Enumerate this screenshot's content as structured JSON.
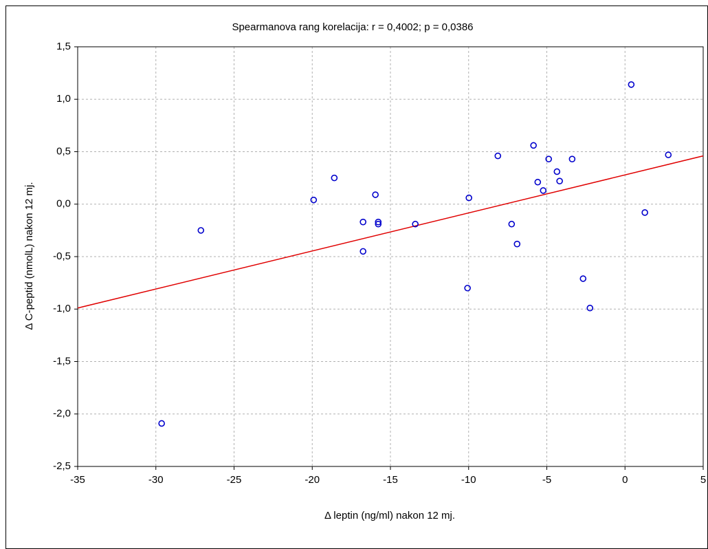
{
  "chart_data": {
    "type": "scatter",
    "title": "Spearmanova rang korelacija: r = 0,4002; p = 0,0386",
    "xlabel": "Δ leptin (ng/ml) nakon 12 mj.",
    "ylabel": "Δ C-peptid  (nmolL) nakon 12 mj.",
    "x": [
      -29.63,
      -27.12,
      -19.91,
      -18.59,
      -16.75,
      -16.75,
      -15.96,
      -15.78,
      -15.78,
      -13.41,
      -10.07,
      -9.98,
      -8.13,
      -7.25,
      -6.9,
      -5.85,
      -5.58,
      -5.23,
      -4.88,
      -4.35,
      -4.18,
      -3.38,
      -2.68,
      -2.24,
      0.4,
      1.27,
      2.77
    ],
    "y": [
      -2.09,
      -0.25,
      0.04,
      0.25,
      -0.17,
      -0.45,
      0.09,
      -0.17,
      -0.19,
      -0.19,
      -0.8,
      0.06,
      0.46,
      -0.19,
      -0.38,
      0.56,
      0.21,
      0.13,
      0.43,
      0.31,
      0.22,
      0.43,
      -0.71,
      -0.99,
      1.14,
      -0.08,
      0.47
    ],
    "color": "#0000cc",
    "fit_line": {
      "x": [
        -35,
        5
      ],
      "y": [
        -0.99,
        0.46
      ],
      "color": "#e00000"
    },
    "xlim": [
      -35,
      5
    ],
    "ylim": [
      -2.5,
      1.5
    ],
    "xticks": [
      -35,
      -30,
      -25,
      -20,
      -15,
      -10,
      -5,
      0,
      5
    ],
    "yticks": [
      {
        "value": -2.5,
        "label": "-2,5"
      },
      {
        "value": -2.0,
        "label": "-2,0"
      },
      {
        "value": -1.5,
        "label": "-1,5"
      },
      {
        "value": -1.0,
        "label": "-1,0"
      },
      {
        "value": -0.5,
        "label": "-0,5"
      },
      {
        "value": 0.0,
        "label": "0,0"
      },
      {
        "value": 0.5,
        "label": "0,5"
      },
      {
        "value": 1.0,
        "label": "1,0"
      },
      {
        "value": 1.5,
        "label": "1,5"
      }
    ],
    "grid": true
  }
}
